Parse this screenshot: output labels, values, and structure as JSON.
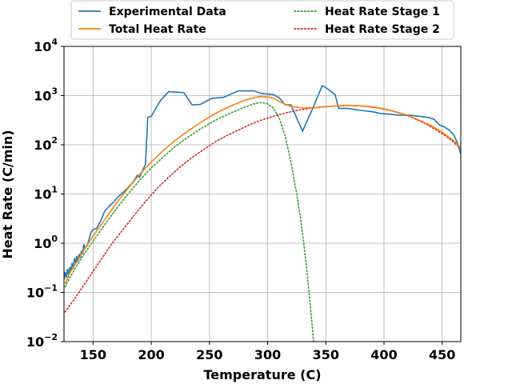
{
  "chart_data": {
    "type": "line",
    "xlabel": "Temperature (C)",
    "ylabel": "Heat Rate (C/min)",
    "xlim": [
      125,
      466
    ],
    "ylim": [
      0.01,
      10000
    ],
    "yscale": "log",
    "grid": true,
    "legend_position": "top, above plot, two columns",
    "x_ticks": [
      150,
      200,
      250,
      300,
      350,
      400,
      450
    ],
    "x_tick_labels": [
      "150",
      "200",
      "250",
      "300",
      "350",
      "400",
      "450"
    ],
    "y_ticks": [
      0.01,
      0.1,
      1,
      10,
      100,
      1000,
      10000
    ],
    "y_tick_labels": [
      {
        "base": "10",
        "exp": "−2"
      },
      {
        "base": "10",
        "exp": "−1"
      },
      {
        "base": "10",
        "exp": "0"
      },
      {
        "base": "10",
        "exp": "1"
      },
      {
        "base": "10",
        "exp": "2"
      },
      {
        "base": "10",
        "exp": "3"
      },
      {
        "base": "10",
        "exp": "4"
      }
    ],
    "series": [
      {
        "name": "Experimental Data",
        "color": "#1f77b4",
        "style": "solid",
        "points": [
          [
            125,
            0.18
          ],
          [
            126,
            0.26
          ],
          [
            127,
            0.2
          ],
          [
            128,
            0.3
          ],
          [
            129,
            0.22
          ],
          [
            130,
            0.33
          ],
          [
            131,
            0.27
          ],
          [
            132,
            0.4
          ],
          [
            133,
            0.3
          ],
          [
            134,
            0.5
          ],
          [
            135,
            0.38
          ],
          [
            136,
            0.55
          ],
          [
            137,
            0.42
          ],
          [
            138,
            0.6
          ],
          [
            139,
            0.5
          ],
          [
            140,
            0.7
          ],
          [
            141,
            0.6
          ],
          [
            142,
            0.95
          ],
          [
            143,
            0.8
          ],
          [
            145,
            0.9
          ],
          [
            148,
            1.6
          ],
          [
            150,
            1.9
          ],
          [
            153,
            2.0
          ],
          [
            157,
            3.0
          ],
          [
            160,
            4.5
          ],
          [
            165,
            6.0
          ],
          [
            168,
            7.0
          ],
          [
            172,
            9.0
          ],
          [
            178,
            12
          ],
          [
            183,
            16
          ],
          [
            186,
            20
          ],
          [
            188,
            24
          ],
          [
            190,
            22
          ],
          [
            193,
            32
          ],
          [
            195,
            40
          ],
          [
            197,
            360
          ],
          [
            200,
            380
          ],
          [
            208,
            800
          ],
          [
            215,
            1200
          ],
          [
            228,
            1150
          ],
          [
            235,
            650
          ],
          [
            242,
            660
          ],
          [
            252,
            880
          ],
          [
            262,
            920
          ],
          [
            275,
            1250
          ],
          [
            288,
            1250
          ],
          [
            295,
            1100
          ],
          [
            305,
            1050
          ],
          [
            310,
            900
          ],
          [
            315,
            650
          ],
          [
            320,
            650
          ],
          [
            330,
            190
          ],
          [
            338,
            500
          ],
          [
            347,
            1600
          ],
          [
            352,
            1350
          ],
          [
            358,
            1050
          ],
          [
            361,
            550
          ],
          [
            368,
            550
          ],
          [
            373,
            530
          ],
          [
            380,
            500
          ],
          [
            390,
            470
          ],
          [
            398,
            430
          ],
          [
            405,
            420
          ],
          [
            412,
            400
          ],
          [
            422,
            400
          ],
          [
            430,
            380
          ],
          [
            438,
            360
          ],
          [
            443,
            330
          ],
          [
            448,
            250
          ],
          [
            452,
            230
          ],
          [
            456,
            200
          ],
          [
            460,
            160
          ],
          [
            463,
            110
          ],
          [
            466,
            65
          ]
        ]
      },
      {
        "name": "Total Heat Rate",
        "color": "#ff7f0e",
        "style": "solid",
        "points": [
          [
            126,
            0.15
          ],
          [
            130,
            0.25
          ],
          [
            140,
            0.6
          ],
          [
            150,
            1.4
          ],
          [
            160,
            3.0
          ],
          [
            170,
            6.5
          ],
          [
            180,
            13
          ],
          [
            190,
            25
          ],
          [
            200,
            45
          ],
          [
            210,
            75
          ],
          [
            220,
            120
          ],
          [
            230,
            180
          ],
          [
            240,
            260
          ],
          [
            250,
            370
          ],
          [
            260,
            500
          ],
          [
            270,
            640
          ],
          [
            280,
            800
          ],
          [
            290,
            930
          ],
          [
            295,
            960
          ],
          [
            300,
            940
          ],
          [
            305,
            880
          ],
          [
            310,
            760
          ],
          [
            315,
            660
          ],
          [
            320,
            610
          ],
          [
            330,
            560
          ],
          [
            340,
            570
          ],
          [
            350,
            600
          ],
          [
            360,
            620
          ],
          [
            370,
            630
          ],
          [
            380,
            620
          ],
          [
            390,
            590
          ],
          [
            400,
            540
          ],
          [
            410,
            470
          ],
          [
            420,
            400
          ],
          [
            430,
            320
          ],
          [
            440,
            250
          ],
          [
            450,
            180
          ],
          [
            460,
            120
          ],
          [
            466,
            85
          ]
        ]
      },
      {
        "name": "Heat Rate Stage 1",
        "color": "#2ca02c",
        "style": "dotted",
        "points": [
          [
            126,
            0.13
          ],
          [
            130,
            0.2
          ],
          [
            140,
            0.5
          ],
          [
            150,
            1.1
          ],
          [
            160,
            2.4
          ],
          [
            170,
            5.0
          ],
          [
            180,
            10
          ],
          [
            190,
            19
          ],
          [
            200,
            34
          ],
          [
            210,
            56
          ],
          [
            220,
            90
          ],
          [
            230,
            135
          ],
          [
            240,
            195
          ],
          [
            250,
            270
          ],
          [
            260,
            360
          ],
          [
            270,
            460
          ],
          [
            280,
            580
          ],
          [
            290,
            700
          ],
          [
            295,
            720
          ],
          [
            300,
            680
          ],
          [
            305,
            560
          ],
          [
            310,
            350
          ],
          [
            315,
            150
          ],
          [
            320,
            45
          ],
          [
            325,
            10
          ],
          [
            328,
            3.5
          ],
          [
            331,
            1.0
          ],
          [
            334,
            0.25
          ],
          [
            336,
            0.08
          ],
          [
            338,
            0.025
          ],
          [
            339.5,
            0.01
          ]
        ]
      },
      {
        "name": "Heat Rate Stage 2",
        "color": "#d62728",
        "style": "dotted",
        "points": [
          [
            126,
            0.04
          ],
          [
            135,
            0.08
          ],
          [
            145,
            0.18
          ],
          [
            155,
            0.4
          ],
          [
            165,
            0.9
          ],
          [
            175,
            1.8
          ],
          [
            185,
            3.6
          ],
          [
            195,
            7
          ],
          [
            205,
            13
          ],
          [
            215,
            22
          ],
          [
            225,
            36
          ],
          [
            235,
            55
          ],
          [
            245,
            80
          ],
          [
            255,
            115
          ],
          [
            265,
            155
          ],
          [
            275,
            200
          ],
          [
            285,
            260
          ],
          [
            295,
            320
          ],
          [
            305,
            380
          ],
          [
            315,
            440
          ],
          [
            325,
            500
          ],
          [
            335,
            545
          ],
          [
            345,
            580
          ],
          [
            355,
            610
          ],
          [
            365,
            630
          ],
          [
            375,
            625
          ],
          [
            385,
            600
          ],
          [
            395,
            560
          ],
          [
            405,
            500
          ],
          [
            415,
            430
          ],
          [
            425,
            350
          ],
          [
            435,
            275
          ],
          [
            445,
            200
          ],
          [
            455,
            140
          ],
          [
            466,
            85
          ]
        ]
      }
    ]
  }
}
